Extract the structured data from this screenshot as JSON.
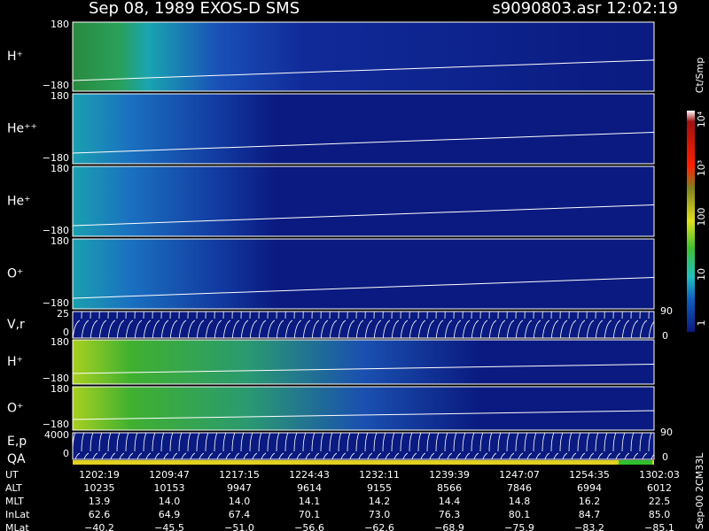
{
  "header": {
    "title": "Sep 08, 1989    EXOS-D SMS",
    "file": "s9090803.asr  12:02:19"
  },
  "panels": [
    {
      "label": "H⁺",
      "top": "180",
      "bottom": "−180"
    },
    {
      "label": "He⁺⁺",
      "top": "180",
      "bottom": "−180"
    },
    {
      "label": "He⁺",
      "top": "180",
      "bottom": "−180"
    },
    {
      "label": "O⁺",
      "top": "180",
      "bottom": "−180"
    },
    {
      "label": "V,r",
      "top": "25",
      "bottom": "0",
      "right_top": "90",
      "right_bottom": "0"
    },
    {
      "label": "H⁺",
      "top": "180",
      "bottom": "−180"
    },
    {
      "label": "O⁺",
      "top": "180",
      "bottom": "−180"
    },
    {
      "label": "E,p",
      "label2": "QA",
      "top": "4000",
      "bottom": "0",
      "right_top": "90",
      "right_bottom": "0"
    }
  ],
  "colorbar": {
    "title": "Ct/Smp",
    "labels": [
      "10⁴",
      "10³",
      "100",
      "10",
      "1"
    ]
  },
  "footer_id": "Sep-00 2CM33L",
  "ephemeris": [
    {
      "label": "UT",
      "values": [
        "1202:19",
        "1209:47",
        "1217:15",
        "1224:43",
        "1232:11",
        "1239:39",
        "1247:07",
        "1254:35",
        "1302:03"
      ]
    },
    {
      "label": "ALT",
      "values": [
        "10235",
        "10153",
        "9947",
        "9614",
        "9155",
        "8566",
        "7846",
        "6994",
        "6012"
      ]
    },
    {
      "label": "MLT",
      "values": [
        "13.9",
        "14.0",
        "14.0",
        "14.1",
        "14.2",
        "14.4",
        "14.8",
        "16.2",
        "22.5"
      ]
    },
    {
      "label": "InLat",
      "values": [
        "62.6",
        "64.9",
        "67.4",
        "70.1",
        "73.0",
        "76.3",
        "80.1",
        "84.7",
        "85.0"
      ]
    },
    {
      "label": "MLat",
      "values": [
        "−40.2",
        "−45.5",
        "−51.0",
        "−56.6",
        "−62.6",
        "−68.9",
        "−75.9",
        "−83.2",
        "−85.1"
      ]
    }
  ]
}
